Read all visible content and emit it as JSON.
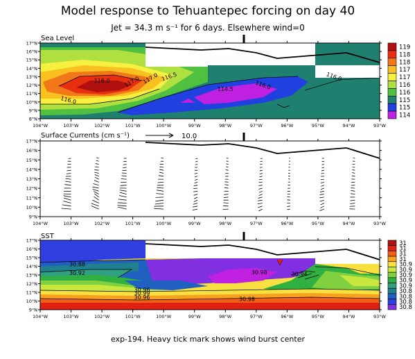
{
  "title": "Model response to Tehuantepec forcing on day 40",
  "subtitle": "Jet = 34.3 m s⁻¹ for 6 days. Elsewhere wind=0",
  "footer": "exp-194. Heavy tick mark shows wind burst center",
  "colors": {
    "background": "#ffffff",
    "frame": "#000000",
    "coast": "#000000",
    "arrow": "#000000"
  },
  "chart_data": [
    {
      "type": "heatmap",
      "panel": "top",
      "title": "Sea Level",
      "x_ticks": [
        "104°W",
        "103°W",
        "102°W",
        "101°W",
        "100°W",
        "99°W",
        "98°W",
        "97°W",
        "96°W",
        "95°W",
        "94°W",
        "93°W"
      ],
      "y_ticks": [
        "8°N",
        "9°N",
        "10°N",
        "11°N",
        "12°N",
        "13°N",
        "14°N",
        "15°N",
        "16°N",
        "17°N"
      ],
      "xlim": [
        -104,
        -93
      ],
      "ylim": [
        8,
        17
      ],
      "wind_burst_center_lon": -97.4,
      "colorbar": {
        "labels": [
          "119",
          "118",
          "118",
          "117",
          "117",
          "116",
          "116",
          "115",
          "115",
          "114"
        ],
        "colors": [
          "#b01010",
          "#e83010",
          "#f07818",
          "#f8c020",
          "#f8f040",
          "#b0e040",
          "#50c040",
          "#208070",
          "#2040e0",
          "#c020e0"
        ]
      },
      "contour_labels": [
        {
          "text": "116.0",
          "lon": -102.0,
          "lat": 12.3,
          "rot": 0
        },
        {
          "text": "117.0",
          "lon": -101.0,
          "lat": 12.2,
          "rot": -30
        },
        {
          "text": "117.0",
          "lon": -100.4,
          "lat": 12.6,
          "rot": -30
        },
        {
          "text": "116.5",
          "lon": -99.8,
          "lat": 12.8,
          "rot": -20
        },
        {
          "text": "116.0",
          "lon": -103.1,
          "lat": 10.0,
          "rot": 15
        },
        {
          "text": "114.5",
          "lon": -98.0,
          "lat": 11.3,
          "rot": 0
        },
        {
          "text": "116.0",
          "lon": -96.8,
          "lat": 11.8,
          "rot": 20
        },
        {
          "text": "116.0",
          "lon": -94.5,
          "lat": 12.8,
          "rot": 20
        }
      ]
    },
    {
      "type": "scatter",
      "panel": "middle",
      "title": "Surface Currents (cm s⁻¹)",
      "reference_vector_label": "10.0",
      "x_ticks": [
        "104°W",
        "103°W",
        "102°W",
        "101°W",
        "100°W",
        "99°W",
        "98°W",
        "97°W",
        "96°W",
        "95°W",
        "94°W",
        "93°W"
      ],
      "y_ticks": [
        "9°N",
        "10°N",
        "11°N",
        "12°N",
        "13°N",
        "14°N",
        "15°N",
        "16°N",
        "17°N"
      ],
      "xlim": [
        -104,
        -93
      ],
      "ylim": [
        9,
        17
      ],
      "wind_burst_center_lon": -97.4,
      "vector_column_lons": [
        -103.0,
        -102.1,
        -101.2,
        -100.0,
        -98.9,
        -97.9,
        -96.8,
        -95.9,
        -94.8,
        -93.8
      ]
    },
    {
      "type": "heatmap",
      "panel": "bottom",
      "title": "SST",
      "x_ticks": [
        "104°W",
        "103°W",
        "102°W",
        "101°W",
        "100°W",
        "99°W",
        "98°W",
        "97°W",
        "96°W",
        "95°W",
        "94°W",
        "93°W"
      ],
      "y_ticks": [
        "9°N",
        "10°N",
        "11°N",
        "12°N",
        "13°N",
        "14°N",
        "15°N",
        "16°N",
        "17°N"
      ],
      "xlim": [
        -104,
        -93
      ],
      "ylim": [
        9,
        17
      ],
      "wind_burst_center_lon": -97.4,
      "colorbar": {
        "labels": [
          "31",
          "31",
          "31",
          "31",
          "30.9",
          "30.9",
          "30.9",
          "30.9",
          "30.9",
          "30.8",
          "30.8",
          "30.8",
          "30.8"
        ],
        "colors": [
          "#b01010",
          "#e02010",
          "#f06018",
          "#f8a020",
          "#f8e040",
          "#c8e840",
          "#80d040",
          "#30b040",
          "#30a080",
          "#208090",
          "#2060c0",
          "#3040e0",
          "#8030e0"
        ]
      },
      "contour_labels": [
        {
          "text": "30.88",
          "lon": -102.8,
          "lat": 14.0,
          "rot": 0
        },
        {
          "text": "30.92",
          "lon": -102.8,
          "lat": 13.0,
          "rot": 0
        },
        {
          "text": "30.98",
          "lon": -96.9,
          "lat": 13.1,
          "rot": 0
        },
        {
          "text": "30.94",
          "lon": -95.6,
          "lat": 12.9,
          "rot": 0
        },
        {
          "text": "30.96",
          "lon": -100.7,
          "lat": 11.1,
          "rot": 0
        },
        {
          "text": "30.99",
          "lon": -100.7,
          "lat": 10.7,
          "rot": 0
        },
        {
          "text": "30.96",
          "lon": -100.7,
          "lat": 10.2,
          "rot": 0
        },
        {
          "text": "30.98",
          "lon": -97.3,
          "lat": 10.0,
          "rot": 0
        }
      ]
    }
  ]
}
